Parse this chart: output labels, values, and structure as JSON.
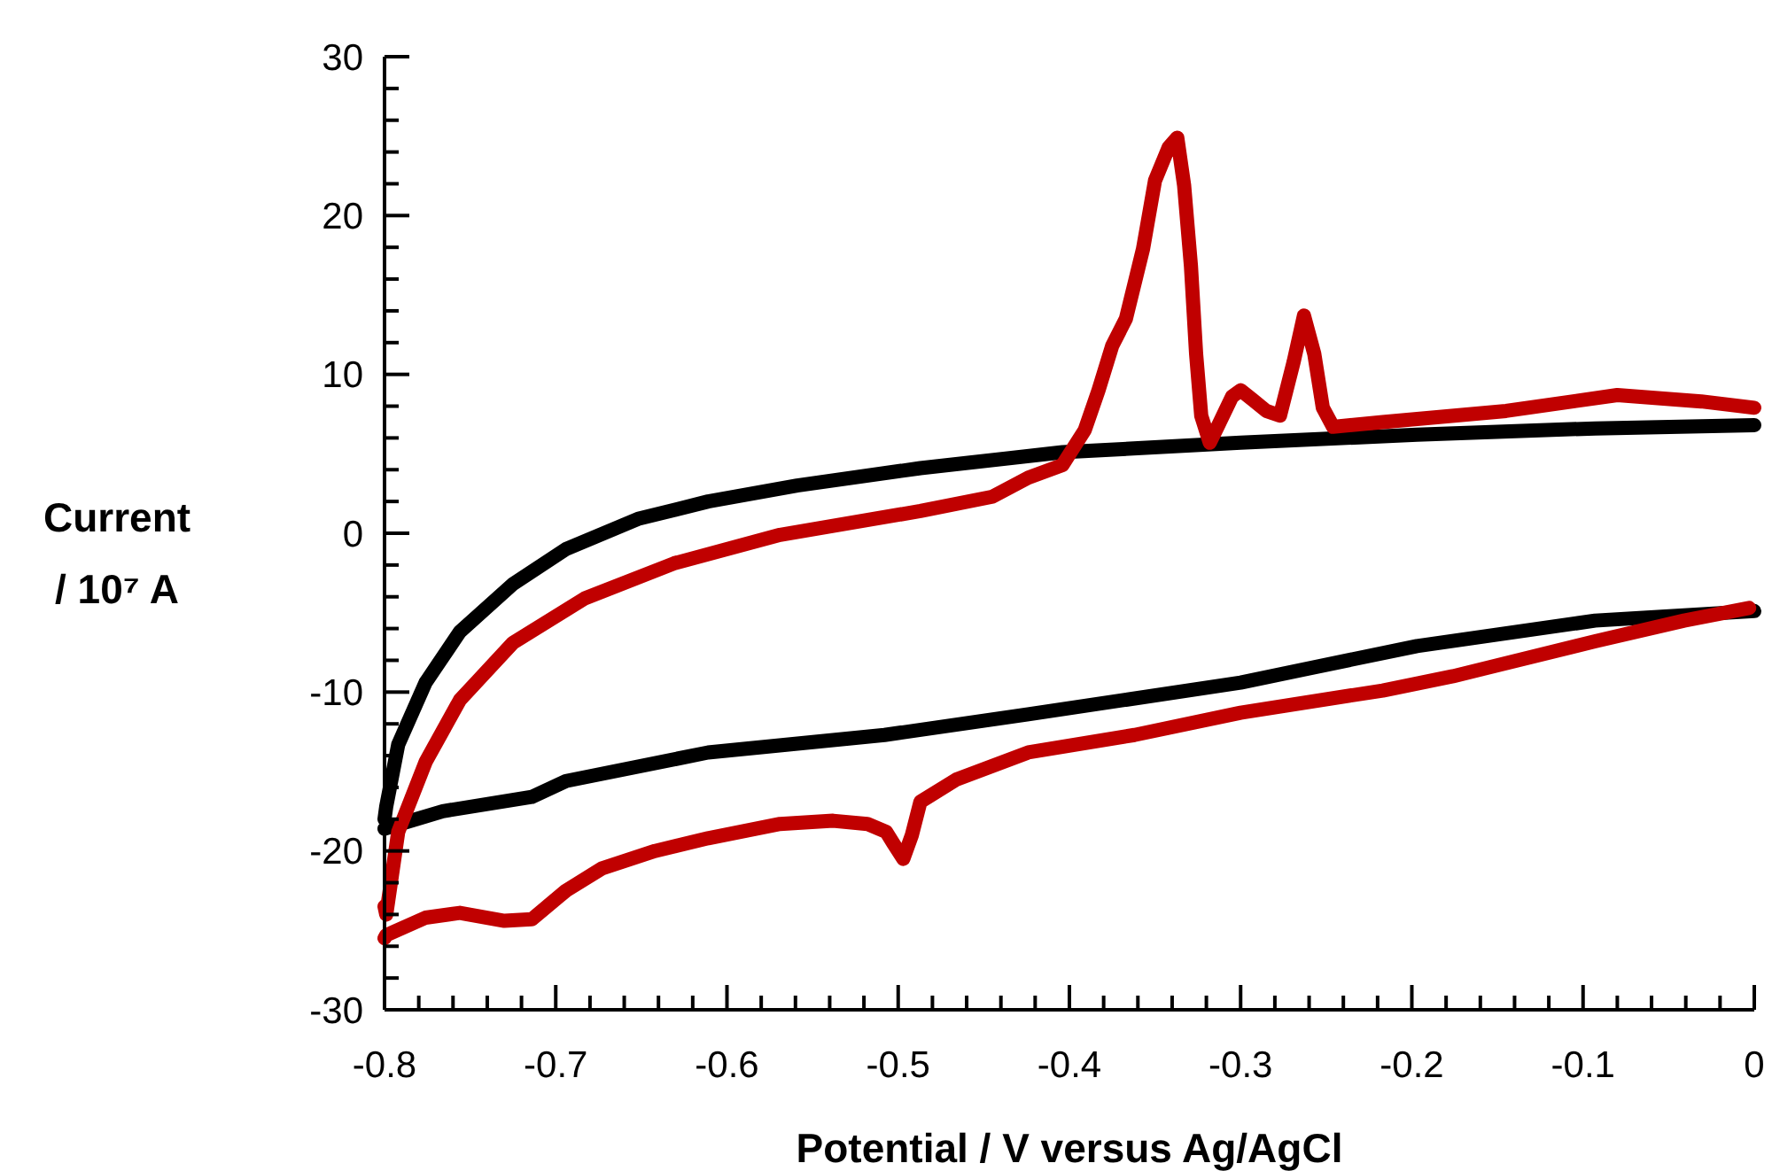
{
  "chart_data": {
    "type": "line",
    "xlabel": "Potential / V versus Ag/AgCl",
    "ylabel": "Current / 10⁷ A",
    "xlim": [
      -0.8,
      0
    ],
    "ylim": [
      -30,
      30
    ],
    "xticks": [
      -0.8,
      {
        "value": -0.78,
        "label": null
      },
      {
        "value": -0.76,
        "label": null
      },
      {
        "value": -0.74,
        "label": null
      },
      {
        "value": -0.72,
        "label": null
      },
      -0.7,
      {
        "value": -0.68,
        "label": null
      },
      {
        "value": -0.66,
        "label": null
      },
      {
        "value": -0.64,
        "label": null
      },
      {
        "value": -0.62,
        "label": null
      },
      -0.6,
      {
        "value": -0.58,
        "label": null
      },
      {
        "value": -0.56,
        "label": null
      },
      {
        "value": -0.54,
        "label": null
      },
      {
        "value": -0.52,
        "label": null
      },
      -0.5,
      {
        "value": -0.48,
        "label": null
      },
      {
        "value": -0.46,
        "label": null
      },
      {
        "value": -0.44,
        "label": null
      },
      {
        "value": -0.42,
        "label": null
      },
      -0.4,
      {
        "value": -0.38,
        "label": null
      },
      {
        "value": -0.36,
        "label": null
      },
      {
        "value": -0.34,
        "label": null
      },
      {
        "value": -0.32,
        "label": null
      },
      -0.3,
      {
        "value": -0.28,
        "label": null
      },
      {
        "value": -0.26,
        "label": null
      },
      {
        "value": -0.24,
        "label": null
      },
      {
        "value": -0.22,
        "label": null
      },
      -0.2,
      {
        "value": -0.18,
        "label": null
      },
      {
        "value": -0.16,
        "label": null
      },
      {
        "value": -0.14,
        "label": null
      },
      {
        "value": -0.12,
        "label": null
      },
      -0.1,
      {
        "value": -0.08,
        "label": null
      },
      {
        "value": -0.06,
        "label": null
      },
      {
        "value": -0.04,
        "label": null
      },
      {
        "value": -0.02,
        "label": null
      },
      0
    ],
    "yticks": [
      -30,
      {
        "value": -28,
        "label": null
      },
      {
        "value": -26,
        "label": null
      },
      {
        "value": -24,
        "label": null
      },
      {
        "value": -22,
        "label": null
      },
      -20,
      {
        "value": -18,
        "label": null
      },
      {
        "value": -16,
        "label": null
      },
      {
        "value": -14,
        "label": null
      },
      {
        "value": -12,
        "label": null
      },
      -10,
      {
        "value": -8,
        "label": null
      },
      {
        "value": -6,
        "label": null
      },
      {
        "value": -4,
        "label": null
      },
      {
        "value": -2,
        "label": null
      },
      0,
      {
        "value": 2,
        "label": null
      },
      {
        "value": 4,
        "label": null
      },
      {
        "value": 6,
        "label": null
      },
      {
        "value": 8,
        "label": null
      },
      10,
      {
        "value": 12,
        "label": null
      },
      {
        "value": 14,
        "label": null
      },
      {
        "value": 16,
        "label": null
      },
      {
        "value": 18,
        "label": null
      },
      20,
      {
        "value": 22,
        "label": null
      },
      {
        "value": 24,
        "label": null
      },
      {
        "value": 26,
        "label": null
      },
      {
        "value": 28,
        "label": null
      },
      30
    ],
    "series": [
      {
        "color": "#000000",
        "x": [
          -0.8,
          -0.799,
          -0.792,
          -0.776,
          -0.756,
          -0.725,
          -0.694,
          -0.652,
          -0.611,
          -0.559,
          -0.487,
          -0.404,
          -0.3,
          -0.197,
          -0.093,
          0,
          null,
          0,
          -0.093,
          -0.197,
          -0.3,
          -0.424,
          -0.508,
          -0.611,
          -0.694,
          -0.714,
          -0.766,
          -0.797,
          -0.8
        ],
        "values": [
          -18.0,
          -17.2,
          -13.3,
          -9.4,
          -6.2,
          -3.2,
          -1.0,
          0.9,
          2.0,
          3.0,
          4.1,
          5.1,
          5.7,
          6.2,
          6.6,
          6.8,
          null,
          -4.9,
          -5.5,
          -7.1,
          -9.4,
          -11.4,
          -12.7,
          -13.8,
          -15.6,
          -16.6,
          -17.5,
          -18.5,
          -18.6
        ]
      },
      {
        "color": "#c00000",
        "x": [
          -0.8,
          -0.799,
          -0.792,
          -0.776,
          -0.756,
          -0.725,
          -0.683,
          -0.631,
          -0.569,
          -0.487,
          -0.445,
          -0.424,
          -0.404,
          -0.391,
          -0.383,
          -0.375,
          -0.367,
          -0.357,
          -0.35,
          -0.342,
          -0.337,
          -0.333,
          -0.329,
          -0.326,
          -0.323,
          -0.318,
          -0.313,
          -0.305,
          -0.3,
          -0.293,
          -0.285,
          -0.277,
          -0.269,
          -0.263,
          -0.257,
          -0.252,
          -0.246,
          -0.217,
          -0.145,
          -0.08,
          -0.031,
          0,
          null,
          -0.003,
          -0.041,
          -0.093,
          -0.176,
          -0.217,
          -0.3,
          -0.362,
          -0.424,
          -0.466,
          -0.487,
          -0.492,
          -0.497,
          -0.503,
          -0.507,
          -0.518,
          -0.538,
          -0.569,
          -0.611,
          -0.642,
          -0.673,
          -0.694,
          -0.714,
          -0.73,
          -0.756,
          -0.776,
          -0.799,
          -0.8
        ],
        "values": [
          -23.5,
          -24.0,
          -18.8,
          -14.4,
          -10.5,
          -6.9,
          -4.1,
          -1.9,
          -0.1,
          1.4,
          2.3,
          3.5,
          4.3,
          6.5,
          9.0,
          11.8,
          13.5,
          17.9,
          22.2,
          24.3,
          24.9,
          21.9,
          16.8,
          11.3,
          7.4,
          5.7,
          6.8,
          8.6,
          9.0,
          8.4,
          7.7,
          7.4,
          10.8,
          13.7,
          11.3,
          7.9,
          6.7,
          7.0,
          7.7,
          8.7,
          8.3,
          7.9,
          null,
          -4.7,
          -5.5,
          -6.8,
          -9.0,
          -9.9,
          -11.3,
          -12.7,
          -13.8,
          -15.5,
          -16.9,
          -19.0,
          -20.5,
          -19.5,
          -18.8,
          -18.3,
          -18.1,
          -18.3,
          -19.2,
          -20.0,
          -21.1,
          -22.5,
          -24.3,
          -24.4,
          -23.9,
          -24.2,
          -25.3,
          -25.5
        ]
      }
    ]
  }
}
